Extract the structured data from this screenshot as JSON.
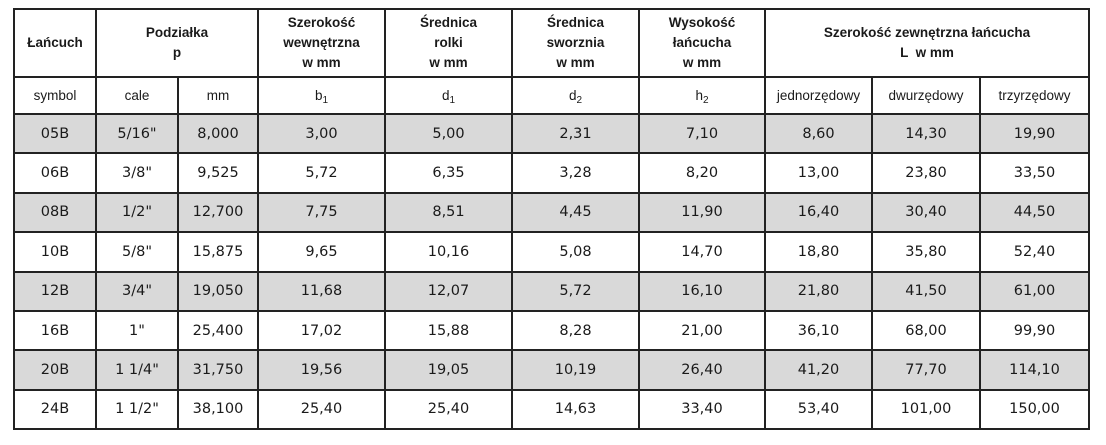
{
  "header": {
    "chain": "Łańcuch",
    "pitch": [
      "Podziałka",
      "p"
    ],
    "inner_width": [
      "Szerokość",
      "wewnętrzna",
      "w mm"
    ],
    "roller_diameter": [
      "Średnica",
      "rolki",
      "w mm"
    ],
    "pin_diameter": [
      "Średnica",
      "sworznia",
      "w mm"
    ],
    "chain_height": [
      "Wysokość",
      "łańcucha",
      "w mm"
    ],
    "outer_width": [
      "Szerokość zewnętrzna łańcucha",
      "L  w mm"
    ]
  },
  "subheader": {
    "symbol": "symbol",
    "inches": "cale",
    "mm": "mm",
    "b": "b",
    "b_sub": "1",
    "d1": "d",
    "d1_sub": "1",
    "d2": "d",
    "d2_sub": "2",
    "h": "h",
    "h_sub": "2",
    "single": "jednorzędowy",
    "double": "dwurzędowy",
    "triple": "trzyrzędowy"
  },
  "rows": [
    [
      "05B",
      "5/16\"",
      "8,000",
      "3,00",
      "5,00",
      "2,31",
      "7,10",
      "8,60",
      "14,30",
      "19,90"
    ],
    [
      "06B",
      "3/8\"",
      "9,525",
      "5,72",
      "6,35",
      "3,28",
      "8,20",
      "13,00",
      "23,80",
      "33,50"
    ],
    [
      "08B",
      "1/2\"",
      "12,700",
      "7,75",
      "8,51",
      "4,45",
      "11,90",
      "16,40",
      "30,40",
      "44,50"
    ],
    [
      "10B",
      "5/8\"",
      "15,875",
      "9,65",
      "10,16",
      "5,08",
      "14,70",
      "18,80",
      "35,80",
      "52,40"
    ],
    [
      "12B",
      "3/4\"",
      "19,050",
      "11,68",
      "12,07",
      "5,72",
      "16,10",
      "21,80",
      "41,50",
      "61,00"
    ],
    [
      "16B",
      "1\"",
      "25,400",
      "17,02",
      "15,88",
      "8,28",
      "21,00",
      "36,10",
      "68,00",
      "99,90"
    ],
    [
      "20B",
      "1 1/4\"",
      "31,750",
      "19,56",
      "19,05",
      "10,19",
      "26,40",
      "41,20",
      "77,70",
      "114,10"
    ],
    [
      "24B",
      "1 1/2\"",
      "38,100",
      "25,40",
      "25,40",
      "14,63",
      "33,40",
      "53,40",
      "101,00",
      "150,00"
    ]
  ],
  "colors": {
    "shaded_row": "#d9d9d9",
    "border": "#222222"
  }
}
